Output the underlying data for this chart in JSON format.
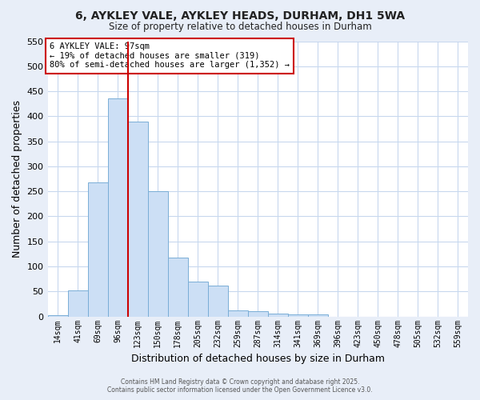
{
  "title": "6, AYKLEY VALE, AYKLEY HEADS, DURHAM, DH1 5WA",
  "subtitle": "Size of property relative to detached houses in Durham",
  "xlabel": "Distribution of detached houses by size in Durham",
  "ylabel": "Number of detached properties",
  "bar_color": "#ccdff5",
  "bar_edge_color": "#7aaed6",
  "figure_bg": "#e8eef8",
  "axes_bg": "#ffffff",
  "grid_color": "#c8d8ee",
  "categories": [
    "14sqm",
    "41sqm",
    "69sqm",
    "96sqm",
    "123sqm",
    "150sqm",
    "178sqm",
    "205sqm",
    "232sqm",
    "259sqm",
    "287sqm",
    "314sqm",
    "341sqm",
    "369sqm",
    "396sqm",
    "423sqm",
    "450sqm",
    "478sqm",
    "505sqm",
    "532sqm",
    "559sqm"
  ],
  "values": [
    2,
    52,
    268,
    435,
    390,
    251,
    118,
    70,
    62,
    13,
    11,
    6,
    5,
    4,
    0,
    0,
    0,
    0,
    0,
    0,
    0
  ],
  "ylim": [
    0,
    550
  ],
  "yticks": [
    0,
    50,
    100,
    150,
    200,
    250,
    300,
    350,
    400,
    450,
    500,
    550
  ],
  "vline_x_index": 3,
  "vline_color": "#cc0000",
  "annotation_title": "6 AYKLEY VALE: 97sqm",
  "annotation_line1": "← 19% of detached houses are smaller (319)",
  "annotation_line2": "80% of semi-detached houses are larger (1,352) →",
  "annotation_box_color": "#ffffff",
  "annotation_box_edge": "#cc0000",
  "footer1": "Contains HM Land Registry data © Crown copyright and database right 2025.",
  "footer2": "Contains public sector information licensed under the Open Government Licence v3.0."
}
